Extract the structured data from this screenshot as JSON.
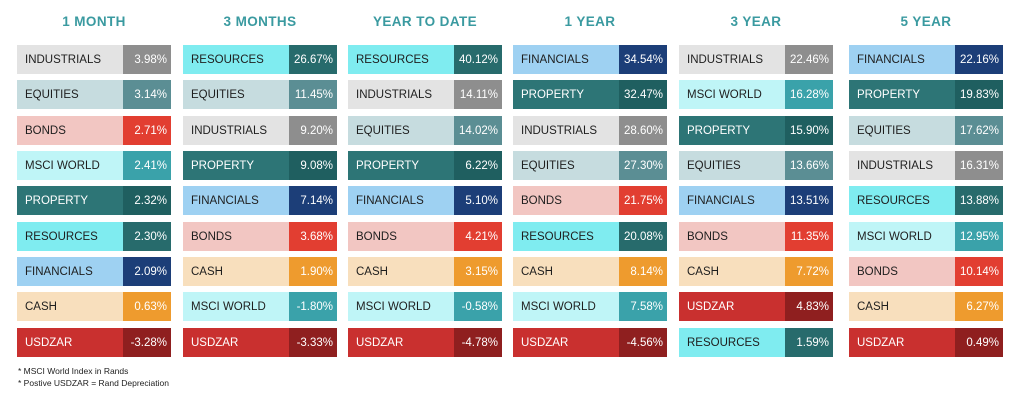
{
  "columns": [
    {
      "header": "1 MONTH",
      "rows": [
        {
          "cat": "industrials",
          "label": "INDUSTRIALS",
          "value": "3.98%"
        },
        {
          "cat": "equities",
          "label": "EQUITIES",
          "value": "3.14%"
        },
        {
          "cat": "bonds",
          "label": "BONDS",
          "value": "2.71%"
        },
        {
          "cat": "msci",
          "label": "MSCI WORLD",
          "value": "2.41%"
        },
        {
          "cat": "property",
          "label": "PROPERTY",
          "value": "2.32%"
        },
        {
          "cat": "resources",
          "label": "RESOURCES",
          "value": "2.30%"
        },
        {
          "cat": "financials",
          "label": "FINANCIALS",
          "value": "2.09%"
        },
        {
          "cat": "cash",
          "label": "CASH",
          "value": "0.63%"
        },
        {
          "cat": "usdzar",
          "label": "USDZAR",
          "value": "-3.28%"
        }
      ]
    },
    {
      "header": "3 MONTHS",
      "rows": [
        {
          "cat": "resources",
          "label": "RESOURCES",
          "value": "26.67%"
        },
        {
          "cat": "equities",
          "label": "EQUITIES",
          "value": "11.45%"
        },
        {
          "cat": "industrials",
          "label": "INDUSTRIALS",
          "value": "9.20%"
        },
        {
          "cat": "property",
          "label": "PROPERTY",
          "value": "9.08%"
        },
        {
          "cat": "financials",
          "label": "FINANCIALS",
          "value": "7.14%"
        },
        {
          "cat": "bonds",
          "label": "BONDS",
          "value": "3.68%"
        },
        {
          "cat": "cash",
          "label": "CASH",
          "value": "1.90%"
        },
        {
          "cat": "msci",
          "label": "MSCI WORLD",
          "value": "-1.80%"
        },
        {
          "cat": "usdzar",
          "label": "USDZAR",
          "value": "-3.33%"
        }
      ]
    },
    {
      "header": "YEAR TO DATE",
      "rows": [
        {
          "cat": "resources",
          "label": "RESOURCES",
          "value": "40.12%"
        },
        {
          "cat": "industrials",
          "label": "INDUSTRIALS",
          "value": "14.11%"
        },
        {
          "cat": "equities",
          "label": "EQUITIES",
          "value": "14.02%"
        },
        {
          "cat": "property",
          "label": "PROPERTY",
          "value": "6.22%"
        },
        {
          "cat": "financials",
          "label": "FINANCIALS",
          "value": "5.10%"
        },
        {
          "cat": "bonds",
          "label": "BONDS",
          "value": "4.21%"
        },
        {
          "cat": "cash",
          "label": "CASH",
          "value": "3.15%"
        },
        {
          "cat": "msci",
          "label": "MSCI WORLD",
          "value": "-0.58%"
        },
        {
          "cat": "usdzar",
          "label": "USDZAR",
          "value": "-4.78%"
        }
      ]
    },
    {
      "header": "1 YEAR",
      "rows": [
        {
          "cat": "financials",
          "label": "FINANCIALS",
          "value": "34.54%"
        },
        {
          "cat": "property",
          "label": "PROPERTY",
          "value": "32.47%"
        },
        {
          "cat": "industrials",
          "label": "INDUSTRIALS",
          "value": "28.60%"
        },
        {
          "cat": "equities",
          "label": "EQUITIES",
          "value": "27.30%"
        },
        {
          "cat": "bonds",
          "label": "BONDS",
          "value": "21.75%"
        },
        {
          "cat": "resources",
          "label": "RESOURCES",
          "value": "20.08%"
        },
        {
          "cat": "cash",
          "label": "CASH",
          "value": "8.14%"
        },
        {
          "cat": "msci",
          "label": "MSCI WORLD",
          "value": "7.58%"
        },
        {
          "cat": "usdzar",
          "label": "USDZAR",
          "value": "-4.56%"
        }
      ]
    },
    {
      "header": "3 YEAR",
      "rows": [
        {
          "cat": "industrials",
          "label": "INDUSTRIALS",
          "value": "22.46%"
        },
        {
          "cat": "msci",
          "label": "MSCI WORLD",
          "value": "16.28%"
        },
        {
          "cat": "property",
          "label": "PROPERTY",
          "value": "15.90%"
        },
        {
          "cat": "equities",
          "label": "EQUITIES",
          "value": "13.66%"
        },
        {
          "cat": "financials",
          "label": "FINANCIALS",
          "value": "13.51%"
        },
        {
          "cat": "bonds",
          "label": "BONDS",
          "value": "11.35%"
        },
        {
          "cat": "cash",
          "label": "CASH",
          "value": "7.72%"
        },
        {
          "cat": "usdzar",
          "label": "USDZAR",
          "value": "4.83%"
        },
        {
          "cat": "resources",
          "label": "RESOURCES",
          "value": "1.59%"
        }
      ]
    },
    {
      "header": "5 YEAR",
      "rows": [
        {
          "cat": "financials",
          "label": "FINANCIALS",
          "value": "22.16%"
        },
        {
          "cat": "property",
          "label": "PROPERTY",
          "value": "19.83%"
        },
        {
          "cat": "equities",
          "label": "EQUITIES",
          "value": "17.62%"
        },
        {
          "cat": "industrials",
          "label": "INDUSTRIALS",
          "value": "16.31%"
        },
        {
          "cat": "resources",
          "label": "RESOURCES",
          "value": "13.88%"
        },
        {
          "cat": "msci",
          "label": "MSCI WORLD",
          "value": "12.95%"
        },
        {
          "cat": "bonds",
          "label": "BONDS",
          "value": "10.14%"
        },
        {
          "cat": "cash",
          "label": "CASH",
          "value": "6.27%"
        },
        {
          "cat": "usdzar",
          "label": "USDZAR",
          "value": "0.49%"
        }
      ]
    }
  ],
  "notes": [
    "* MSCI World Index in  Rands",
    "* Postive USDZAR = Rand Depreciation"
  ],
  "colors": {
    "header": "#3a9aa0",
    "industrials": "#8e8e8e",
    "equities": "#5b8e94",
    "bonds": "#e23e31",
    "msci_world": "#3aa2aa",
    "property": "#1f5f60",
    "resources": "#276b6c",
    "financials": "#1c3e78",
    "cash": "#ee9b2e",
    "usdzar": "#8f1f1f"
  }
}
